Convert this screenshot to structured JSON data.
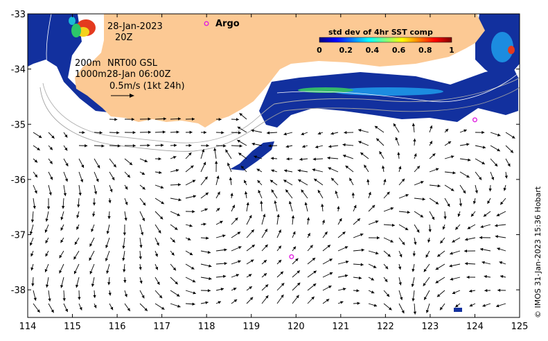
{
  "map": {
    "axes": {
      "x_ticks": [
        "114",
        "115",
        "116",
        "117",
        "118",
        "119",
        "120",
        "121",
        "122",
        "123",
        "124",
        "125"
      ],
      "y_ticks": [
        "-33",
        "-34",
        "-35",
        "-36",
        "-37",
        "-38"
      ],
      "lon_range": [
        114,
        125
      ],
      "lat_range": [
        -38.5,
        -33
      ]
    },
    "annotations": {
      "date_line1": "28-Jan-2023",
      "date_line2": "20Z",
      "contour_200": "200m",
      "contour_1000": "1000m",
      "model_label": "NRT00 GSL",
      "model_time": "28-Jan 06:00Z",
      "scale_label": "0.5m/s (1kt 24h)",
      "argo_label": "Argo"
    },
    "colorbar": {
      "title": "std dev of 4hr SST comp",
      "range": [
        0,
        1
      ],
      "tick_labels": [
        "0",
        "0.2",
        "0.4",
        "0.6",
        "0.8",
        "1"
      ],
      "colors": [
        "#00007f",
        "#0000ff",
        "#007fff",
        "#00ffff",
        "#7fff7f",
        "#ffff00",
        "#ff7f00",
        "#ff0000",
        "#7f0000"
      ]
    },
    "argo_floats": [
      {
        "lon": 119.9,
        "lat": -37.4
      },
      {
        "lon": 124.0,
        "lat": -34.92
      }
    ],
    "land_color": "#fcc994",
    "sst_background_color": "#0d2a9a",
    "argo_color": "#e020e0",
    "credit": "© IMOS 31-Jan-2023 15:36 Hobart"
  }
}
